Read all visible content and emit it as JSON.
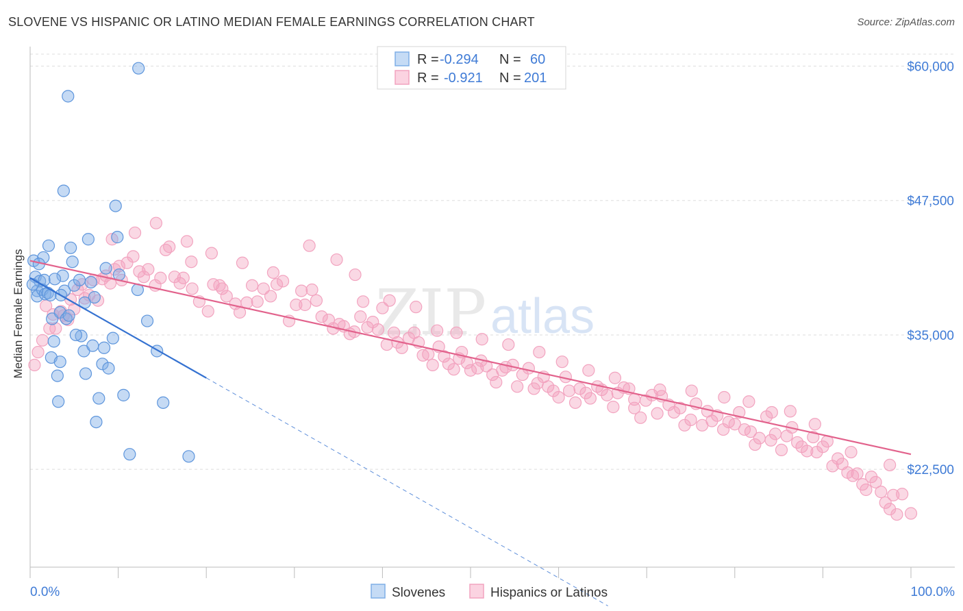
{
  "title": "SLOVENE VS HISPANIC OR LATINO MEDIAN FEMALE EARNINGS CORRELATION CHART",
  "source": "Source: ZipAtlas.com",
  "watermark": {
    "zip": "ZIP",
    "atlas": "atlas"
  },
  "colors": {
    "blue": "#7eaee6",
    "blue_line": "#3572d1",
    "pink": "#f2a3bf",
    "pink_line": "#e2628c",
    "tick_text": "#3f7bd6",
    "grid": "#dddddd"
  },
  "stats": {
    "r_label": "R =",
    "n_label": "N =",
    "series": [
      {
        "r": "-0.294",
        "n": "60"
      },
      {
        "r": "-0.921",
        "n": "201"
      }
    ]
  },
  "chart_data": {
    "type": "scatter",
    "title": "SLOVENE VS HISPANIC OR LATINO MEDIAN FEMALE EARNINGS CORRELATION CHART",
    "xlabel": "",
    "ylabel": "Median Female Earnings",
    "x_tick_labels": [
      "0.0%",
      "100.0%"
    ],
    "y_ticks": [
      22500,
      35000,
      47500,
      60000
    ],
    "y_tick_labels": [
      "$22,500",
      "$35,000",
      "$47,500",
      "$60,000"
    ],
    "xlim": [
      0,
      100
    ],
    "ylim": [
      13400,
      62200
    ],
    "grid": true,
    "legend_position": "bottom",
    "series": [
      {
        "name": "Slovenes",
        "trend": {
          "x0": 0,
          "y0": 40300,
          "x1": 20,
          "y1": 31000,
          "dashed_to_x": 65.6,
          "dashed_to_y": 9800
        },
        "points": [
          [
            0.4,
            41.9
          ],
          [
            0.6,
            40.4
          ],
          [
            0.8,
            39.1
          ],
          [
            0.8,
            38.6
          ],
          [
            1.1,
            40.0
          ],
          [
            1.4,
            39.2
          ],
          [
            1.5,
            42.2
          ],
          [
            1.6,
            40.1
          ],
          [
            1.7,
            38.8
          ],
          [
            2.0,
            38.9
          ],
          [
            2.1,
            43.3
          ],
          [
            2.3,
            38.7
          ],
          [
            2.4,
            32.9
          ],
          [
            2.5,
            36.5
          ],
          [
            2.7,
            34.4
          ],
          [
            3.1,
            31.2
          ],
          [
            3.2,
            28.8
          ],
          [
            3.4,
            32.5
          ],
          [
            3.4,
            37.1
          ],
          [
            3.7,
            40.5
          ],
          [
            3.8,
            48.4
          ],
          [
            3.9,
            39.1
          ],
          [
            4.1,
            36.5
          ],
          [
            4.4,
            36.8
          ],
          [
            4.6,
            43.1
          ],
          [
            4.8,
            41.8
          ],
          [
            5.0,
            39.6
          ],
          [
            5.6,
            40.1
          ],
          [
            5.8,
            34.9
          ],
          [
            6.1,
            33.5
          ],
          [
            6.3,
            31.4
          ],
          [
            6.6,
            43.9
          ],
          [
            6.9,
            39.9
          ],
          [
            7.1,
            34.0
          ],
          [
            7.3,
            38.5
          ],
          [
            7.5,
            26.9
          ],
          [
            7.8,
            29.1
          ],
          [
            8.2,
            32.3
          ],
          [
            8.4,
            33.8
          ],
          [
            8.6,
            41.2
          ],
          [
            8.9,
            31.9
          ],
          [
            9.4,
            34.7
          ],
          [
            9.7,
            47.0
          ],
          [
            9.9,
            44.1
          ],
          [
            10.6,
            29.4
          ],
          [
            11.3,
            23.9
          ],
          [
            12.2,
            39.2
          ],
          [
            12.3,
            59.8
          ],
          [
            13.3,
            36.3
          ],
          [
            14.4,
            33.5
          ],
          [
            15.1,
            28.7
          ],
          [
            18.0,
            23.7
          ],
          [
            4.3,
            57.2
          ],
          [
            3.5,
            38.7
          ],
          [
            6.2,
            38.0
          ],
          [
            1.0,
            41.6
          ],
          [
            2.8,
            40.2
          ],
          [
            5.2,
            35.0
          ],
          [
            10.1,
            40.6
          ],
          [
            0.3,
            39.7
          ]
        ]
      },
      {
        "name": "Hispanics or Latinos",
        "trend": {
          "x0": 0,
          "y0": 41900,
          "x1": 100,
          "y1": 23900
        },
        "points": [
          [
            0.5,
            32.2
          ],
          [
            0.9,
            33.4
          ],
          [
            1.4,
            34.5
          ],
          [
            1.8,
            37.7
          ],
          [
            2.2,
            35.6
          ],
          [
            2.6,
            36.9
          ],
          [
            2.9,
            35.6
          ],
          [
            3.5,
            37.2
          ],
          [
            3.8,
            36.8
          ],
          [
            4.3,
            36.4
          ],
          [
            4.6,
            38.3
          ],
          [
            5.0,
            37.4
          ],
          [
            5.4,
            39.2
          ],
          [
            5.9,
            39.7
          ],
          [
            6.2,
            38.4
          ],
          [
            6.7,
            38.7
          ],
          [
            7.2,
            40.1
          ],
          [
            7.7,
            38.2
          ],
          [
            8.2,
            40.2
          ],
          [
            8.6,
            40.5
          ],
          [
            9.1,
            39.8
          ],
          [
            9.6,
            41.1
          ],
          [
            10.1,
            41.4
          ],
          [
            10.4,
            40.1
          ],
          [
            11.0,
            41.7
          ],
          [
            11.7,
            42.3
          ],
          [
            12.4,
            40.9
          ],
          [
            12.9,
            40.4
          ],
          [
            13.4,
            41.1
          ],
          [
            14.2,
            39.6
          ],
          [
            14.8,
            40.3
          ],
          [
            15.4,
            42.9
          ],
          [
            15.8,
            43.2
          ],
          [
            16.4,
            40.4
          ],
          [
            17.0,
            39.8
          ],
          [
            17.4,
            40.3
          ],
          [
            18.3,
            41.8
          ],
          [
            18.4,
            39.3
          ],
          [
            19.2,
            38.1
          ],
          [
            20.2,
            37.2
          ],
          [
            20.8,
            39.7
          ],
          [
            21.5,
            39.6
          ],
          [
            21.8,
            39.3
          ],
          [
            22.3,
            38.6
          ],
          [
            23.3,
            37.9
          ],
          [
            23.8,
            37.1
          ],
          [
            24.6,
            38.0
          ],
          [
            25.2,
            39.6
          ],
          [
            25.8,
            38.1
          ],
          [
            26.5,
            39.3
          ],
          [
            27.3,
            38.6
          ],
          [
            28.0,
            39.7
          ],
          [
            28.7,
            40.0
          ],
          [
            29.4,
            36.3
          ],
          [
            30.2,
            37.8
          ],
          [
            30.8,
            39.1
          ],
          [
            31.2,
            37.8
          ],
          [
            32.0,
            39.2
          ],
          [
            32.5,
            38.2
          ],
          [
            33.1,
            36.7
          ],
          [
            33.9,
            36.4
          ],
          [
            34.4,
            35.6
          ],
          [
            35.1,
            36.0
          ],
          [
            35.6,
            35.8
          ],
          [
            36.3,
            35.1
          ],
          [
            36.8,
            35.3
          ],
          [
            37.5,
            36.7
          ],
          [
            37.8,
            38.1
          ],
          [
            38.3,
            35.7
          ],
          [
            38.9,
            36.2
          ],
          [
            39.5,
            35.5
          ],
          [
            40.0,
            37.5
          ],
          [
            40.5,
            34.1
          ],
          [
            41.3,
            35.2
          ],
          [
            41.7,
            34.3
          ],
          [
            42.2,
            33.8
          ],
          [
            43.0,
            34.7
          ],
          [
            43.6,
            35.2
          ],
          [
            44.1,
            34.3
          ],
          [
            44.6,
            33.1
          ],
          [
            45.2,
            33.2
          ],
          [
            45.7,
            32.2
          ],
          [
            46.4,
            33.9
          ],
          [
            47.0,
            33.0
          ],
          [
            47.5,
            32.3
          ],
          [
            48.1,
            31.8
          ],
          [
            48.7,
            32.8
          ],
          [
            49.0,
            33.4
          ],
          [
            49.6,
            32.4
          ],
          [
            50.0,
            31.7
          ],
          [
            50.8,
            31.9
          ],
          [
            51.2,
            32.6
          ],
          [
            51.8,
            32.1
          ],
          [
            52.5,
            31.3
          ],
          [
            52.9,
            30.6
          ],
          [
            53.6,
            31.7
          ],
          [
            54.0,
            32.0
          ],
          [
            54.8,
            32.2
          ],
          [
            55.3,
            30.2
          ],
          [
            55.9,
            31.3
          ],
          [
            56.6,
            31.9
          ],
          [
            57.2,
            30.0
          ],
          [
            57.6,
            30.5
          ],
          [
            58.3,
            31.1
          ],
          [
            58.8,
            30.2
          ],
          [
            59.4,
            29.8
          ],
          [
            60.0,
            29.2
          ],
          [
            60.8,
            31.1
          ],
          [
            61.2,
            29.8
          ],
          [
            61.9,
            28.7
          ],
          [
            62.4,
            30.0
          ],
          [
            63.1,
            29.6
          ],
          [
            63.6,
            29.1
          ],
          [
            64.4,
            30.2
          ],
          [
            64.9,
            29.9
          ],
          [
            65.5,
            29.4
          ],
          [
            66.2,
            28.3
          ],
          [
            66.7,
            29.6
          ],
          [
            67.4,
            30.1
          ],
          [
            68.0,
            30.0
          ],
          [
            68.6,
            28.2
          ],
          [
            69.3,
            27.3
          ],
          [
            69.9,
            28.9
          ],
          [
            70.6,
            29.4
          ],
          [
            71.2,
            27.7
          ],
          [
            71.7,
            29.3
          ],
          [
            72.5,
            28.5
          ],
          [
            73.1,
            27.8
          ],
          [
            73.8,
            28.2
          ],
          [
            74.3,
            26.6
          ],
          [
            75.0,
            27.1
          ],
          [
            75.6,
            28.6
          ],
          [
            76.3,
            26.6
          ],
          [
            76.9,
            27.9
          ],
          [
            77.4,
            27.0
          ],
          [
            78.0,
            27.5
          ],
          [
            78.7,
            26.2
          ],
          [
            79.3,
            26.9
          ],
          [
            80.0,
            26.7
          ],
          [
            80.5,
            27.8
          ],
          [
            81.1,
            26.2
          ],
          [
            81.8,
            26.0
          ],
          [
            82.3,
            24.8
          ],
          [
            82.8,
            25.4
          ],
          [
            83.6,
            27.4
          ],
          [
            84.1,
            25.2
          ],
          [
            84.6,
            25.8
          ],
          [
            85.3,
            24.3
          ],
          [
            85.9,
            25.6
          ],
          [
            86.5,
            26.4
          ],
          [
            87.1,
            25.0
          ],
          [
            87.6,
            24.6
          ],
          [
            88.2,
            24.2
          ],
          [
            88.9,
            25.5
          ],
          [
            89.3,
            24.1
          ],
          [
            90.0,
            24.6
          ],
          [
            90.5,
            25.1
          ],
          [
            91.1,
            22.8
          ],
          [
            91.7,
            23.5
          ],
          [
            92.2,
            23.0
          ],
          [
            92.8,
            22.2
          ],
          [
            93.4,
            21.9
          ],
          [
            93.9,
            22.1
          ],
          [
            94.5,
            21.1
          ],
          [
            94.9,
            20.6
          ],
          [
            95.5,
            21.8
          ],
          [
            96.0,
            21.3
          ],
          [
            96.6,
            20.4
          ],
          [
            97.1,
            19.4
          ],
          [
            97.6,
            18.8
          ],
          [
            98.0,
            20.1
          ],
          [
            98.4,
            18.3
          ],
          [
            9.3,
            43.9
          ],
          [
            11.9,
            44.5
          ],
          [
            14.3,
            45.4
          ],
          [
            17.8,
            43.7
          ],
          [
            20.6,
            42.6
          ],
          [
            24.1,
            41.7
          ],
          [
            27.6,
            40.8
          ],
          [
            31.7,
            43.3
          ],
          [
            34.8,
            42.0
          ],
          [
            36.9,
            40.6
          ],
          [
            40.8,
            38.2
          ],
          [
            43.8,
            37.6
          ],
          [
            46.2,
            35.4
          ],
          [
            48.4,
            35.2
          ],
          [
            51.3,
            34.6
          ],
          [
            54.3,
            34.1
          ],
          [
            57.8,
            33.4
          ],
          [
            60.4,
            32.5
          ],
          [
            63.4,
            31.7
          ],
          [
            66.4,
            31.0
          ],
          [
            68.6,
            29.0
          ],
          [
            71.5,
            29.9
          ],
          [
            75.1,
            29.8
          ],
          [
            78.8,
            29.2
          ],
          [
            81.6,
            28.8
          ],
          [
            84.2,
            27.8
          ],
          [
            86.3,
            27.9
          ],
          [
            89.1,
            26.7
          ],
          [
            93.2,
            24.1
          ],
          [
            97.6,
            22.9
          ],
          [
            99.0,
            20.2
          ],
          [
            100.0,
            18.4
          ]
        ]
      }
    ]
  },
  "bottom_legend": [
    "Slovenes",
    "Hispanics or Latinos"
  ]
}
